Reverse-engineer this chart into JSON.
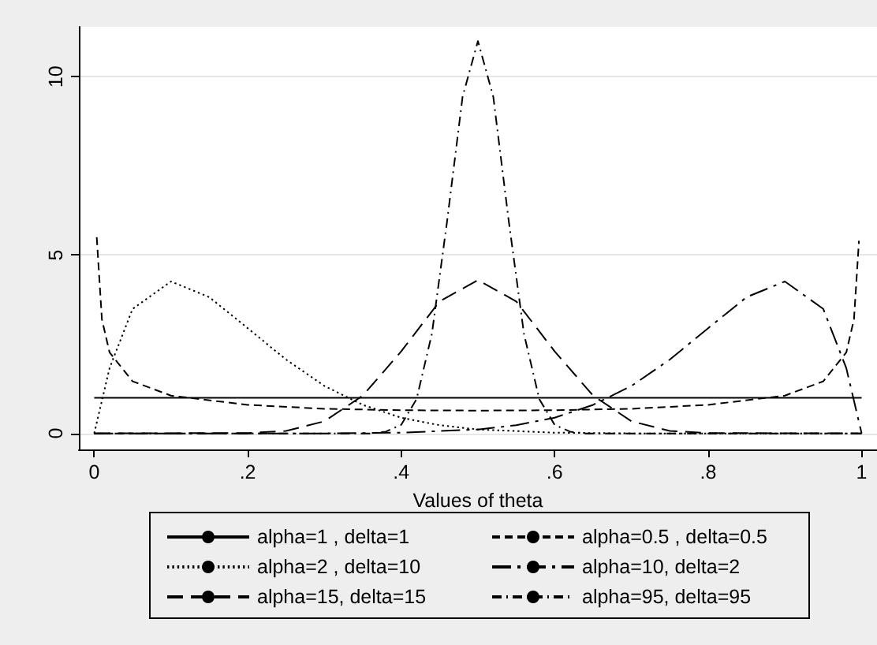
{
  "chart_data": {
    "type": "line",
    "xlabel": "Values of theta",
    "xlim": [
      -0.02,
      1.02
    ],
    "xticks": [
      0,
      {
        "value": 0.2,
        "label": ".2"
      },
      {
        "value": 0.4,
        "label": ".4"
      },
      {
        "value": 0.6,
        "label": ".6"
      },
      {
        "value": 0.8,
        "label": ".8"
      },
      1
    ],
    "ylim": [
      -0.45,
      11.4
    ],
    "yticks": [
      0,
      5,
      10
    ],
    "grid": "y",
    "legend": "bottom",
    "marker": "none",
    "series": [
      {
        "name": "alpha=1 , delta=1",
        "color": "#000000",
        "line_style": "solid",
        "x": [
          0,
          1
        ],
        "values": [
          1,
          1
        ]
      },
      {
        "name": "alpha=0.5 , delta=0.5",
        "color": "#000000",
        "line_style": "dashed",
        "x": [
          0.0033,
          0.01,
          0.02,
          0.05,
          0.1,
          0.2,
          0.3,
          0.4,
          0.5,
          0.6,
          0.7,
          0.8,
          0.9,
          0.95,
          0.98,
          0.99,
          0.9965
        ],
        "values": [
          5.5,
          3.2,
          2.27,
          1.46,
          1.06,
          0.8,
          0.69,
          0.65,
          0.64,
          0.65,
          0.69,
          0.8,
          1.06,
          1.46,
          2.27,
          3.2,
          5.4
        ]
      },
      {
        "name": "alpha=2 , delta=10",
        "color": "#000000",
        "line_style": "dotted",
        "x": [
          0,
          0.02,
          0.05,
          0.1,
          0.15,
          0.2,
          0.25,
          0.3,
          0.35,
          0.4,
          0.45,
          0.5,
          0.6,
          0.7,
          1
        ],
        "values": [
          0,
          1.83,
          3.49,
          4.26,
          3.82,
          2.95,
          2.07,
          1.33,
          0.8,
          0.44,
          0.23,
          0.11,
          0.02,
          0,
          0
        ]
      },
      {
        "name": "alpha=10, delta=2",
        "color": "#000000",
        "line_style": "longdashdot",
        "x": [
          0,
          0.3,
          0.4,
          0.5,
          0.55,
          0.6,
          0.65,
          0.7,
          0.75,
          0.8,
          0.85,
          0.9,
          0.95,
          0.98,
          1
        ],
        "values": [
          0,
          0,
          0.02,
          0.11,
          0.23,
          0.44,
          0.8,
          1.33,
          2.07,
          2.95,
          3.82,
          4.26,
          3.49,
          1.83,
          0
        ]
      },
      {
        "name": "alpha=15, delta=15",
        "color": "#000000",
        "line_style": "longdash",
        "x": [
          0,
          0.2,
          0.25,
          0.3,
          0.35,
          0.4,
          0.45,
          0.5,
          0.55,
          0.6,
          0.65,
          0.7,
          0.75,
          0.8,
          1
        ],
        "values": [
          0,
          0.01,
          0.07,
          0.34,
          1.06,
          2.3,
          3.7,
          4.3,
          3.7,
          2.3,
          1.06,
          0.34,
          0.07,
          0.01,
          0
        ]
      },
      {
        "name": "alpha=95, delta=95",
        "color": "#000000",
        "line_style": "dashdot",
        "x": [
          0,
          0.36,
          0.38,
          0.4,
          0.42,
          0.44,
          0.46,
          0.48,
          0.5,
          0.52,
          0.54,
          0.56,
          0.58,
          0.6,
          0.62,
          0.64,
          1
        ],
        "values": [
          0,
          0,
          0.05,
          0.24,
          0.96,
          2.79,
          5.98,
          9.44,
          11,
          9.44,
          5.98,
          2.79,
          0.96,
          0.24,
          0.05,
          0,
          0
        ]
      }
    ]
  }
}
